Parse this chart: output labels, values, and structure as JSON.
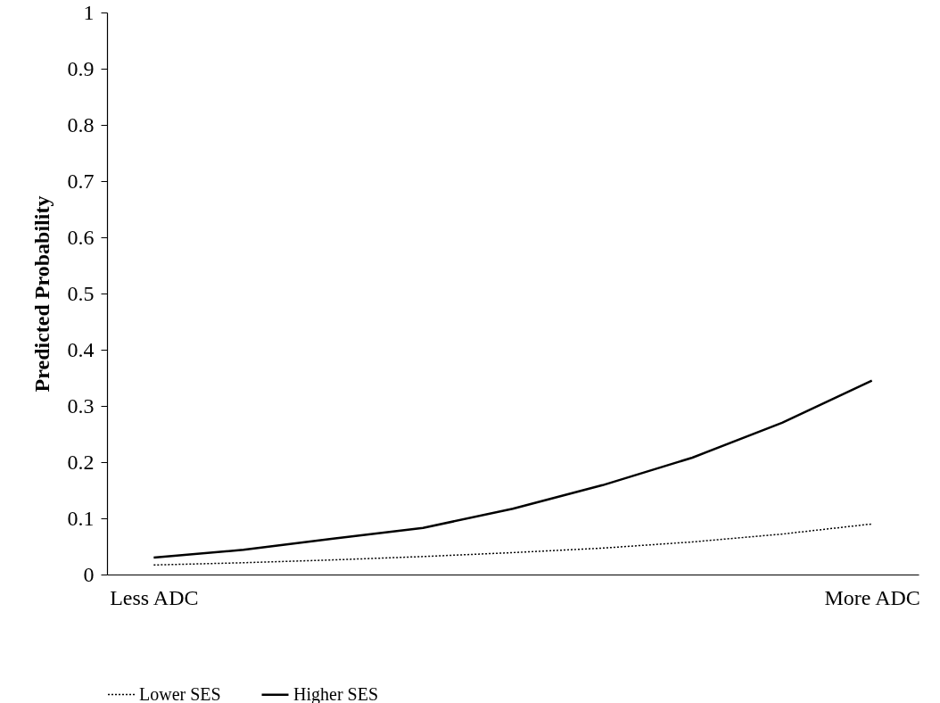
{
  "chart_data": {
    "type": "line",
    "ylabel": "Predicted Probability",
    "categories": [
      "Less ADC",
      null,
      null,
      null,
      null,
      null,
      null,
      null,
      "More ADC"
    ],
    "series": [
      {
        "name": "Lower SES",
        "color": "#000000",
        "line_style": "dotted",
        "values": [
          0.017,
          0.021,
          0.026,
          0.032,
          0.039,
          0.047,
          0.058,
          0.072,
          0.09
        ]
      },
      {
        "name": "Higher SES",
        "color": "#000000",
        "line_style": "solid",
        "values": [
          0.03,
          0.044,
          0.064,
          0.083,
          0.117,
          0.159,
          0.208,
          0.27,
          0.345
        ]
      }
    ],
    "ylim": [
      0,
      1
    ],
    "yticks": [
      0,
      0.1,
      0.2,
      0.3,
      0.4,
      0.5,
      0.6,
      0.7,
      0.8,
      0.9,
      1
    ],
    "grid": false,
    "legend": "bottom",
    "marker": "none"
  }
}
